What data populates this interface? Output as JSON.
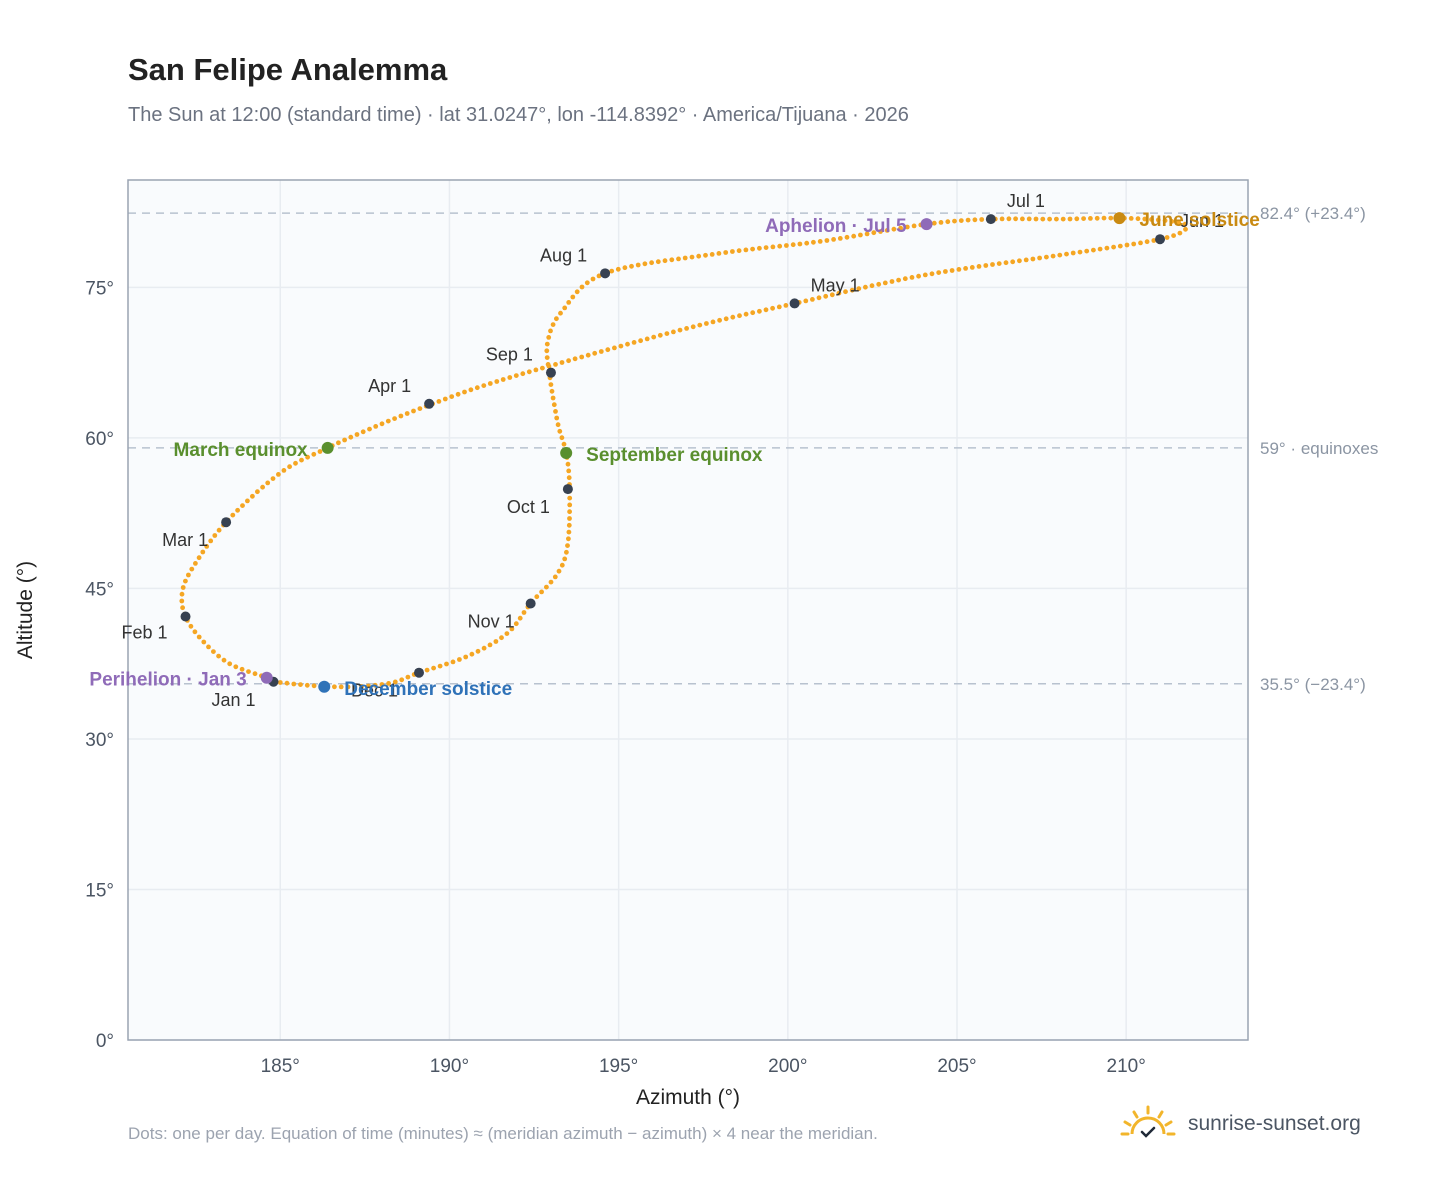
{
  "title": "San Felipe Analemma",
  "subtitle": "The Sun at 12:00 (standard time) · lat 31.0247°, lon -114.8392° · America/Tijuana · 2026",
  "footnote": "Dots: one per day. Equation of time (minutes) ≈ (meridian azimuth − azimuth) × 4 near the meridian.",
  "brand": {
    "name": "sunrise-sunset.org",
    "icon": "sun-logo-icon"
  },
  "colors": {
    "curve": "#f5a623",
    "month_marker": "#374151",
    "equinox": "#5a8f2e",
    "december_solstice": "#2f72b8",
    "june_solstice": "#c98a12",
    "apsis": "#8f6bb8",
    "grid": "#e8ecf1",
    "plot_bg": "#f9fbfd",
    "frame": "#9aa4b2",
    "ref_line": "#b8c2cf"
  },
  "chart_data": {
    "type": "scatter",
    "title": "San Felipe Analemma",
    "xlabel": "Azimuth (°)",
    "ylabel": "Altitude (°)",
    "xlim": [
      180.5,
      213.6
    ],
    "ylim": [
      0,
      85.7
    ],
    "x_ticks": [
      185,
      190,
      195,
      200,
      205,
      210
    ],
    "x_tick_labels": [
      "185°",
      "190°",
      "195°",
      "200°",
      "205°",
      "210°"
    ],
    "y_ticks": [
      0,
      15,
      30,
      45,
      60,
      75
    ],
    "y_tick_labels": [
      "0°",
      "15°",
      "30°",
      "45°",
      "60°",
      "75°"
    ],
    "grid": true,
    "series_note": "one dot per day",
    "path_keypoints": [
      [
        184.8,
        35.7
      ],
      [
        186.0,
        35.3
      ],
      [
        187.2,
        35.2
      ],
      [
        188.3,
        35.6
      ],
      [
        189.1,
        36.6
      ],
      [
        190.5,
        38.2
      ],
      [
        191.7,
        40.5
      ],
      [
        192.4,
        43.5
      ],
      [
        193.2,
        46.5
      ],
      [
        193.5,
        49.5
      ],
      [
        193.55,
        55.0
      ],
      [
        193.45,
        58.5
      ],
      [
        193.2,
        61.5
      ],
      [
        192.95,
        66.5
      ],
      [
        192.9,
        69.5
      ],
      [
        193.3,
        72.5
      ],
      [
        194.6,
        76.4
      ],
      [
        198.0,
        78.4
      ],
      [
        201.0,
        79.6
      ],
      [
        204.1,
        81.3
      ],
      [
        206.0,
        81.8
      ],
      [
        208.0,
        81.8
      ],
      [
        209.8,
        81.9
      ],
      [
        211.3,
        81.6
      ],
      [
        211.8,
        81.0
      ],
      [
        211.0,
        79.8
      ],
      [
        208.0,
        78.2
      ],
      [
        204.0,
        76.2
      ],
      [
        200.2,
        73.4
      ],
      [
        197.0,
        70.9
      ],
      [
        193.0,
        67.2
      ],
      [
        191.0,
        65.2
      ],
      [
        189.5,
        63.4
      ],
      [
        188.0,
        61.4
      ],
      [
        186.4,
        59.0
      ],
      [
        185.0,
        56.5
      ],
      [
        183.4,
        51.6
      ],
      [
        182.4,
        47.0
      ],
      [
        182.1,
        44.5
      ],
      [
        182.2,
        42.2
      ],
      [
        182.7,
        39.8
      ],
      [
        183.5,
        37.5
      ],
      [
        184.6,
        36.1
      ],
      [
        184.8,
        35.7
      ]
    ],
    "month_markers": [
      {
        "label": "Jan 1",
        "x": 184.8,
        "y": 35.7
      },
      {
        "label": "Feb 1",
        "x": 182.2,
        "y": 42.2
      },
      {
        "label": "Mar 1",
        "x": 183.4,
        "y": 51.6
      },
      {
        "label": "Apr 1",
        "x": 189.4,
        "y": 63.4
      },
      {
        "label": "May 1",
        "x": 200.2,
        "y": 73.4
      },
      {
        "label": "Jun 1",
        "x": 211.0,
        "y": 79.8
      },
      {
        "label": "Jul 1",
        "x": 206.0,
        "y": 81.8
      },
      {
        "label": "Aug 1",
        "x": 194.6,
        "y": 76.4
      },
      {
        "label": "Sep 1",
        "x": 193.0,
        "y": 66.5
      },
      {
        "label": "Oct 1",
        "x": 193.5,
        "y": 54.9
      },
      {
        "label": "Nov 1",
        "x": 192.4,
        "y": 43.5
      },
      {
        "label": "Dec 1",
        "x": 189.1,
        "y": 36.6
      }
    ],
    "events": [
      {
        "label": "March equinox",
        "x": 186.4,
        "y": 59.0,
        "color_key": "equinox"
      },
      {
        "label": "September equinox",
        "x": 193.45,
        "y": 58.5,
        "color_key": "equinox"
      },
      {
        "label": "June solstice",
        "x": 209.8,
        "y": 81.9,
        "color_key": "june_solstice"
      },
      {
        "label": "December solstice",
        "x": 186.3,
        "y": 35.2,
        "color_key": "december_solstice"
      },
      {
        "label": "Aphelion · Jul 5",
        "x": 204.1,
        "y": 81.3,
        "color_key": "apsis"
      },
      {
        "label": "Perihelion · Jan 3",
        "x": 184.6,
        "y": 36.1,
        "color_key": "apsis"
      }
    ],
    "reference_lines": [
      {
        "y": 82.4,
        "label": "82.4° (+23.4°)"
      },
      {
        "y": 59.0,
        "label": "59° · equinoxes"
      },
      {
        "y": 35.5,
        "label": "35.5° (−23.4°)"
      }
    ]
  }
}
